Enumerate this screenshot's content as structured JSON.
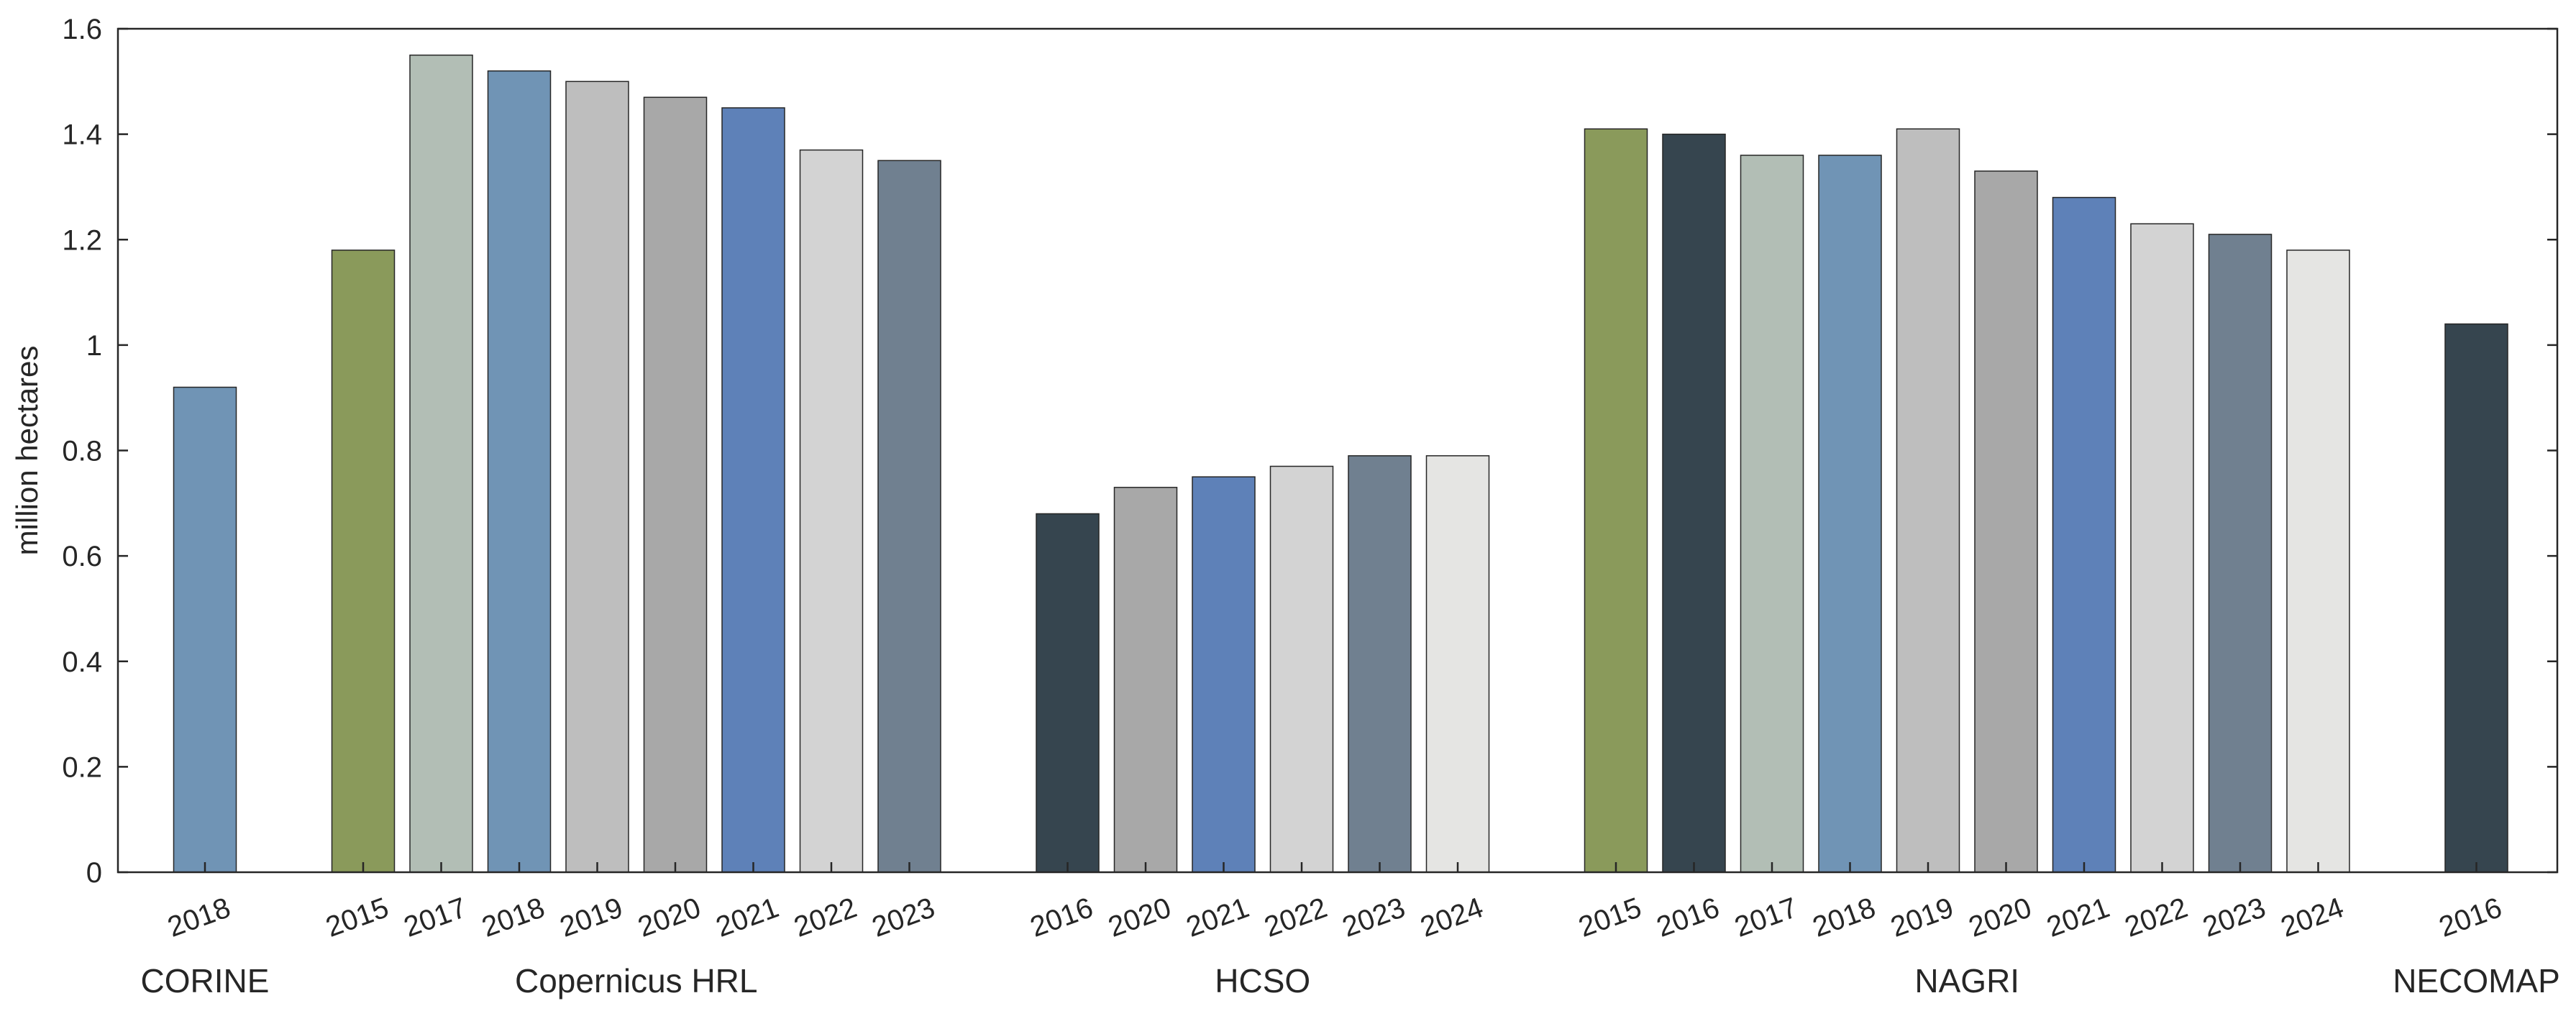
{
  "chart_data": {
    "type": "bar",
    "xlabel": "",
    "ylabel": "million hectares",
    "ylim": [
      0,
      1.6
    ],
    "yticks": [
      "0",
      "0.2",
      "0.4",
      "0.6",
      "0.8",
      "1",
      "1.2",
      "1.4",
      "1.6"
    ],
    "grid": false,
    "legend": "none",
    "groups": [
      {
        "name": "CORINE",
        "bars": [
          {
            "year": "2018",
            "value": 0.92,
            "color": "#7094b5"
          }
        ]
      },
      {
        "name": "Copernicus HRL",
        "bars": [
          {
            "year": "2015",
            "value": 1.18,
            "color": "#8a9a5b"
          },
          {
            "year": "2017",
            "value": 1.55,
            "color": "#b2beb5"
          },
          {
            "year": "2018",
            "value": 1.52,
            "color": "#7094b5"
          },
          {
            "year": "2019",
            "value": 1.5,
            "color": "#bebebe"
          },
          {
            "year": "2020",
            "value": 1.47,
            "color": "#a8a8a8"
          },
          {
            "year": "2021",
            "value": 1.45,
            "color": "#5e81b8"
          },
          {
            "year": "2022",
            "value": 1.37,
            "color": "#d3d3d3"
          },
          {
            "year": "2023",
            "value": 1.35,
            "color": "#708090"
          }
        ]
      },
      {
        "name": "HCSO",
        "bars": [
          {
            "year": "2016",
            "value": 0.68,
            "color": "#36454f"
          },
          {
            "year": "2020",
            "value": 0.73,
            "color": "#a8a8a8"
          },
          {
            "year": "2021",
            "value": 0.75,
            "color": "#5e81b8"
          },
          {
            "year": "2022",
            "value": 0.77,
            "color": "#d3d3d3"
          },
          {
            "year": "2023",
            "value": 0.79,
            "color": "#708090"
          },
          {
            "year": "2024",
            "value": 0.79,
            "color": "#e5e5e3"
          }
        ]
      },
      {
        "name": "NAGRI",
        "bars": [
          {
            "year": "2015",
            "value": 1.41,
            "color": "#8a9a5b"
          },
          {
            "year": "2016",
            "value": 1.4,
            "color": "#36454f"
          },
          {
            "year": "2017",
            "value": 1.36,
            "color": "#b2beb5"
          },
          {
            "year": "2018",
            "value": 1.36,
            "color": "#7094b5"
          },
          {
            "year": "2019",
            "value": 1.41,
            "color": "#bebebe"
          },
          {
            "year": "2020",
            "value": 1.33,
            "color": "#a8a8a8"
          },
          {
            "year": "2021",
            "value": 1.28,
            "color": "#5e81b8"
          },
          {
            "year": "2022",
            "value": 1.23,
            "color": "#d3d3d3"
          },
          {
            "year": "2023",
            "value": 1.21,
            "color": "#708090"
          },
          {
            "year": "2024",
            "value": 1.18,
            "color": "#e5e5e3"
          }
        ]
      },
      {
        "name": "NECOMAP",
        "bars": [
          {
            "year": "2016",
            "value": 1.04,
            "color": "#36454f"
          }
        ]
      }
    ]
  }
}
